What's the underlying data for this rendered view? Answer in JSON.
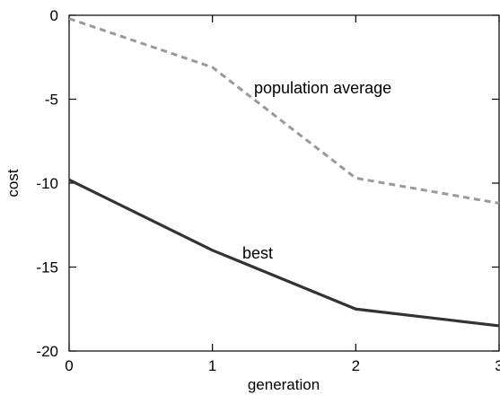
{
  "chart_data": {
    "type": "line",
    "xlabel": "generation",
    "ylabel": "cost",
    "xlim": [
      0,
      3
    ],
    "ylim": [
      -20,
      0
    ],
    "xticks": [
      "0",
      "1",
      "2",
      "3"
    ],
    "yticks": [
      "0",
      "-5",
      "-10",
      "-15",
      "-20"
    ],
    "grid": false,
    "series": [
      {
        "name": "population average",
        "style": "dashed",
        "color": "#999999",
        "x": [
          0,
          1,
          2,
          3
        ],
        "y": [
          -0.2,
          -3.1,
          -9.7,
          -11.2
        ]
      },
      {
        "name": "best",
        "style": "solid",
        "color": "#333333",
        "x": [
          0,
          1,
          2,
          3
        ],
        "y": [
          -9.8,
          -14.0,
          -17.5,
          -18.5
        ]
      }
    ]
  }
}
